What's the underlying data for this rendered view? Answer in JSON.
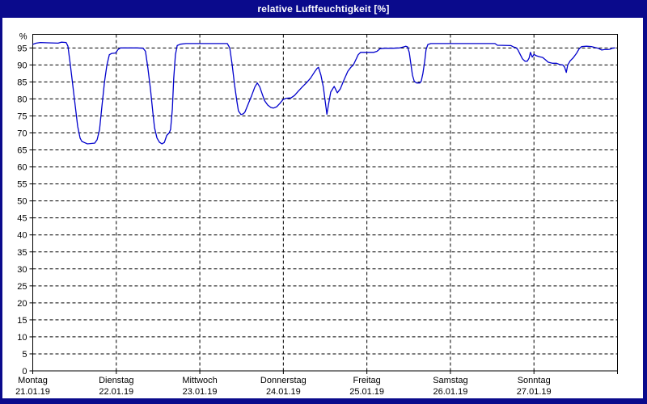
{
  "window": {
    "title": "relative Luftfeuchtigkeit [%]"
  },
  "colors": {
    "frame": "#0a0a8c",
    "title_text": "#ffffff",
    "plot_background": "#ffffff",
    "grid": "#000000",
    "axis_text": "#000000",
    "line": "#0000cc"
  },
  "chart_data": {
    "type": "line",
    "title": "relative Luftfeuchtigkeit [%]",
    "ylabel": "%",
    "xlabel": "",
    "ylim": [
      0,
      99
    ],
    "xlim_hours": [
      0,
      168
    ],
    "grid": true,
    "legend": false,
    "y_ticks": [
      0,
      5,
      10,
      15,
      20,
      25,
      30,
      35,
      40,
      45,
      50,
      55,
      60,
      65,
      70,
      75,
      80,
      85,
      90,
      95
    ],
    "x_labels": [
      {
        "day": "Montag",
        "date": "21.01.19"
      },
      {
        "day": "Dienstag",
        "date": "22.01.19"
      },
      {
        "day": "Mittwoch",
        "date": "23.01.19"
      },
      {
        "day": "Donnerstag",
        "date": "24.01.19"
      },
      {
        "day": "Freitag",
        "date": "25.01.19"
      },
      {
        "day": "Samstag",
        "date": "26.01.19"
      },
      {
        "day": "Sonntag",
        "date": "27.01.19"
      }
    ],
    "series": [
      {
        "name": "relative Luftfeuchtigkeit",
        "color": "#0000cc",
        "points": [
          [
            0.1,
            96.1
          ],
          [
            1,
            96.4
          ],
          [
            2.2,
            96.6
          ],
          [
            4.5,
            96.5
          ],
          [
            7.3,
            96.4
          ],
          [
            8.2,
            96.7
          ],
          [
            9.6,
            96.6
          ],
          [
            10.1,
            95.5
          ],
          [
            10.8,
            90
          ],
          [
            11.5,
            84
          ],
          [
            12.2,
            78
          ],
          [
            12.9,
            72
          ],
          [
            13.6,
            68.5
          ],
          [
            14.1,
            67.5
          ],
          [
            14.8,
            67.2
          ],
          [
            15.7,
            66.8
          ],
          [
            16.8,
            66.9
          ],
          [
            17.8,
            67
          ],
          [
            18.5,
            68
          ],
          [
            19.2,
            71
          ],
          [
            19.9,
            78
          ],
          [
            20.6,
            85
          ],
          [
            21.3,
            90
          ],
          [
            22,
            93
          ],
          [
            22.7,
            93.4
          ],
          [
            23.8,
            93.5
          ],
          [
            24.5,
            94.5
          ],
          [
            25.2,
            95
          ],
          [
            27.8,
            95
          ],
          [
            30.1,
            95
          ],
          [
            31.7,
            94.9
          ],
          [
            32.4,
            94
          ],
          [
            33.1,
            89
          ],
          [
            33.8,
            83
          ],
          [
            34.5,
            76
          ],
          [
            35,
            71.5
          ],
          [
            35.7,
            68.5
          ],
          [
            36.4,
            67.3
          ],
          [
            37.1,
            66.8
          ],
          [
            37.8,
            67.2
          ],
          [
            38.5,
            69.3
          ],
          [
            39.2,
            70
          ],
          [
            39.6,
            71
          ],
          [
            40.1,
            77
          ],
          [
            40.5,
            86
          ],
          [
            41,
            93
          ],
          [
            41.5,
            95.7
          ],
          [
            42.4,
            96.1
          ],
          [
            44,
            96.3
          ],
          [
            48.7,
            96.3
          ],
          [
            55.9,
            96.3
          ],
          [
            56.6,
            95
          ],
          [
            57.3,
            90
          ],
          [
            58,
            84
          ],
          [
            58.7,
            79
          ],
          [
            59.1,
            76.5
          ],
          [
            59.8,
            75.4
          ],
          [
            60.5,
            75.6
          ],
          [
            61,
            76.2
          ],
          [
            61.9,
            78.5
          ],
          [
            62.9,
            81
          ],
          [
            63.8,
            83.5
          ],
          [
            64.5,
            84.7
          ],
          [
            65.2,
            83.6
          ],
          [
            65.9,
            81.5
          ],
          [
            66.6,
            79.5
          ],
          [
            67.5,
            78.2
          ],
          [
            68.4,
            77.5
          ],
          [
            69.1,
            77.3
          ],
          [
            70.1,
            77.7
          ],
          [
            71,
            78.7
          ],
          [
            71.9,
            79.8
          ],
          [
            72.8,
            80.2
          ],
          [
            74.2,
            80.3
          ],
          [
            75.2,
            81
          ],
          [
            76.3,
            82.3
          ],
          [
            77.5,
            83.6
          ],
          [
            78.7,
            84.8
          ],
          [
            79.8,
            86.1
          ],
          [
            81,
            88
          ],
          [
            81.7,
            89
          ],
          [
            82.1,
            89.3
          ],
          [
            82.8,
            87
          ],
          [
            83.5,
            83.5
          ],
          [
            84,
            79.5
          ],
          [
            84.5,
            75.5
          ],
          [
            84.9,
            78
          ],
          [
            85.6,
            82
          ],
          [
            86.6,
            83.7
          ],
          [
            87.5,
            81.8
          ],
          [
            88.4,
            83
          ],
          [
            89.3,
            85.3
          ],
          [
            90.5,
            88.1
          ],
          [
            91.4,
            89.3
          ],
          [
            92.1,
            90
          ],
          [
            92.8,
            91.5
          ],
          [
            93.5,
            93
          ],
          [
            94.2,
            93.7
          ],
          [
            95.6,
            93.7
          ],
          [
            98,
            93.7
          ],
          [
            98.9,
            94
          ],
          [
            99.8,
            94.8
          ],
          [
            101.2,
            94.9
          ],
          [
            103.5,
            94.9
          ],
          [
            105.4,
            95
          ],
          [
            106.5,
            95.3
          ],
          [
            107.2,
            95.5
          ],
          [
            107.7,
            95.3
          ],
          [
            108.2,
            93.6
          ],
          [
            108.6,
            90.5
          ],
          [
            109.1,
            87
          ],
          [
            109.6,
            85.2
          ],
          [
            110.3,
            84.7
          ],
          [
            111.2,
            84.7
          ],
          [
            111.6,
            85.2
          ],
          [
            112.1,
            87.5
          ],
          [
            112.6,
            91
          ],
          [
            113,
            94.5
          ],
          [
            113.5,
            96
          ],
          [
            114.4,
            96.3
          ],
          [
            120.7,
            96.3
          ],
          [
            132.8,
            96.3
          ],
          [
            133.5,
            95.8
          ],
          [
            137.4,
            95.7
          ],
          [
            138.1,
            95.3
          ],
          [
            138.8,
            95.1
          ],
          [
            139.3,
            94.6
          ],
          [
            140,
            93.2
          ],
          [
            140.7,
            91.8
          ],
          [
            141.4,
            91.1
          ],
          [
            142.1,
            91.1
          ],
          [
            142.6,
            92
          ],
          [
            143,
            93.7
          ],
          [
            143.5,
            92.3
          ],
          [
            144,
            93.1
          ],
          [
            144.7,
            92.7
          ],
          [
            145.6,
            92.4
          ],
          [
            146.5,
            92.2
          ],
          [
            147.2,
            91.6
          ],
          [
            148.1,
            90.8
          ],
          [
            149.3,
            90.5
          ],
          [
            150.5,
            90.5
          ],
          [
            151.4,
            90.1
          ],
          [
            152.3,
            90
          ],
          [
            152.8,
            89.4
          ],
          [
            153.3,
            87.8
          ],
          [
            153.7,
            90
          ],
          [
            154.4,
            91.2
          ],
          [
            155.3,
            92.1
          ],
          [
            156.3,
            93.5
          ],
          [
            157,
            94.8
          ],
          [
            157.7,
            95.4
          ],
          [
            159.1,
            95.5
          ],
          [
            160.5,
            95.4
          ],
          [
            161.6,
            95.1
          ],
          [
            162.5,
            94.9
          ],
          [
            163,
            94.6
          ],
          [
            163.5,
            94.4
          ],
          [
            164.2,
            94.5
          ],
          [
            165.1,
            94.5
          ],
          [
            165.8,
            94.6
          ],
          [
            166.5,
            94.9
          ],
          [
            167.2,
            95
          ]
        ]
      }
    ]
  }
}
